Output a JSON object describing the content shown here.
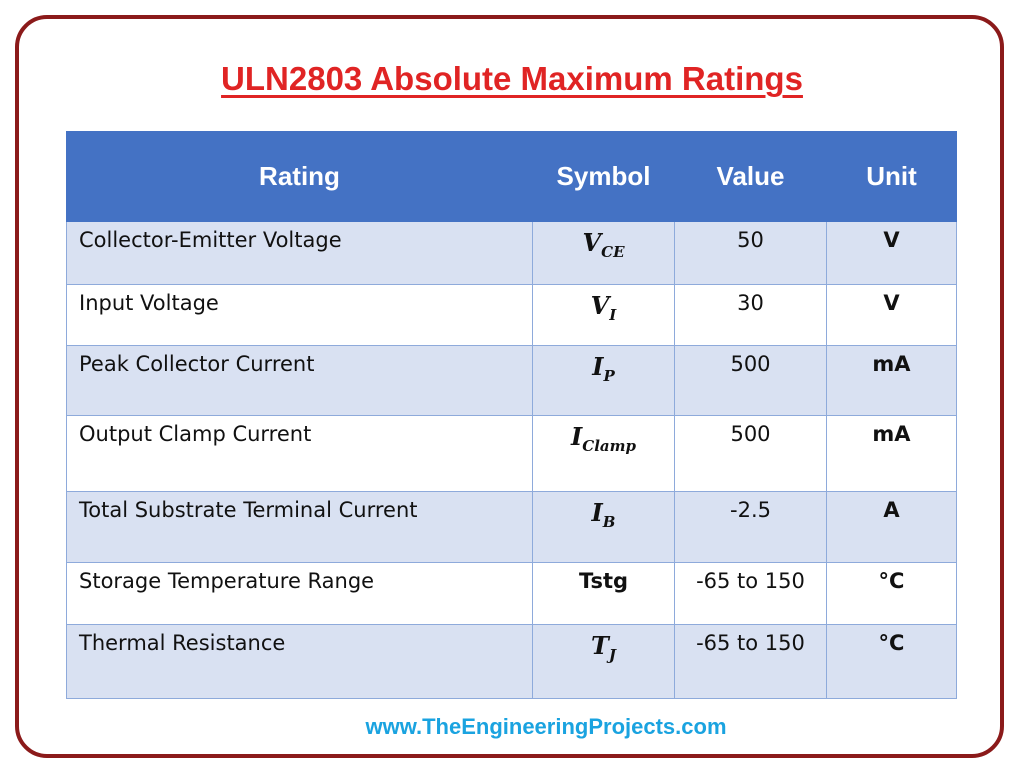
{
  "title": "ULN2803 Absolute Maximum Ratings",
  "table": {
    "header": [
      "Rating",
      "Symbol",
      "Value",
      "Unit"
    ],
    "rows": [
      {
        "rating": "Collector-Emitter Voltage",
        "symbol": {
          "main": "V",
          "sub": "CE"
        },
        "value": "50",
        "unit": "V"
      },
      {
        "rating": "Input Voltage",
        "symbol": {
          "main": "V",
          "sub": "I"
        },
        "value": "30",
        "unit": "V"
      },
      {
        "rating": "Peak Collector Current",
        "symbol": {
          "main": "I",
          "sub": "P"
        },
        "value": "500",
        "unit": "mA"
      },
      {
        "rating": "Output Clamp Current",
        "symbol": {
          "main": "I",
          "sub": "Clamp"
        },
        "value": "500",
        "unit": "mA"
      },
      {
        "rating": "Total Substrate Terminal Current",
        "symbol": {
          "main": "I",
          "sub": "B"
        },
        "value": "-2.5",
        "unit": "A"
      },
      {
        "rating": "Storage Temperature Range",
        "symbol": {
          "text": "Tstg"
        },
        "value": "-65 to 150",
        "unit": "°C"
      },
      {
        "rating": "Thermal Resistance",
        "symbol": {
          "main": "T",
          "sub": "J"
        },
        "value": "-65 to 150",
        "unit": "°C"
      }
    ]
  },
  "footer": "www.TheEngineeringProjects.com"
}
